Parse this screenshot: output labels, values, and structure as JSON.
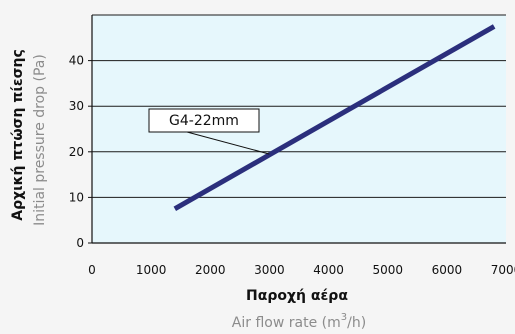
{
  "chart_data": {
    "type": "line",
    "x": [
      1400,
      6800
    ],
    "series": [
      {
        "values": [
          7.5,
          47.5
        ],
        "color": "#2b2f7c"
      }
    ],
    "xticks": [
      0,
      1000,
      2000,
      3000,
      4000,
      5000,
      6000,
      7000
    ],
    "yticks": [
      0,
      10,
      20,
      30,
      40
    ],
    "xlim": [
      0,
      7000
    ],
    "ylim": [
      0,
      50
    ],
    "grid": "horizontal",
    "xlabel_main": "Παροχή αέρα",
    "xlabel_sub_prefix": "Air flow rate (m",
    "xlabel_sub_sup": "3",
    "xlabel_sub_suffix": "/h)",
    "ylabel_main": "Αρχική πτώση πίεσης",
    "ylabel_sub": "Initial pressure drop (Pa)",
    "annotation": {
      "text": "G4-22mm",
      "x": 3000,
      "y": 19.5
    },
    "plot_bg": "#e6f7fc",
    "page_bg": "#f5f5f5",
    "gridline_color": "#1a1a1a"
  }
}
